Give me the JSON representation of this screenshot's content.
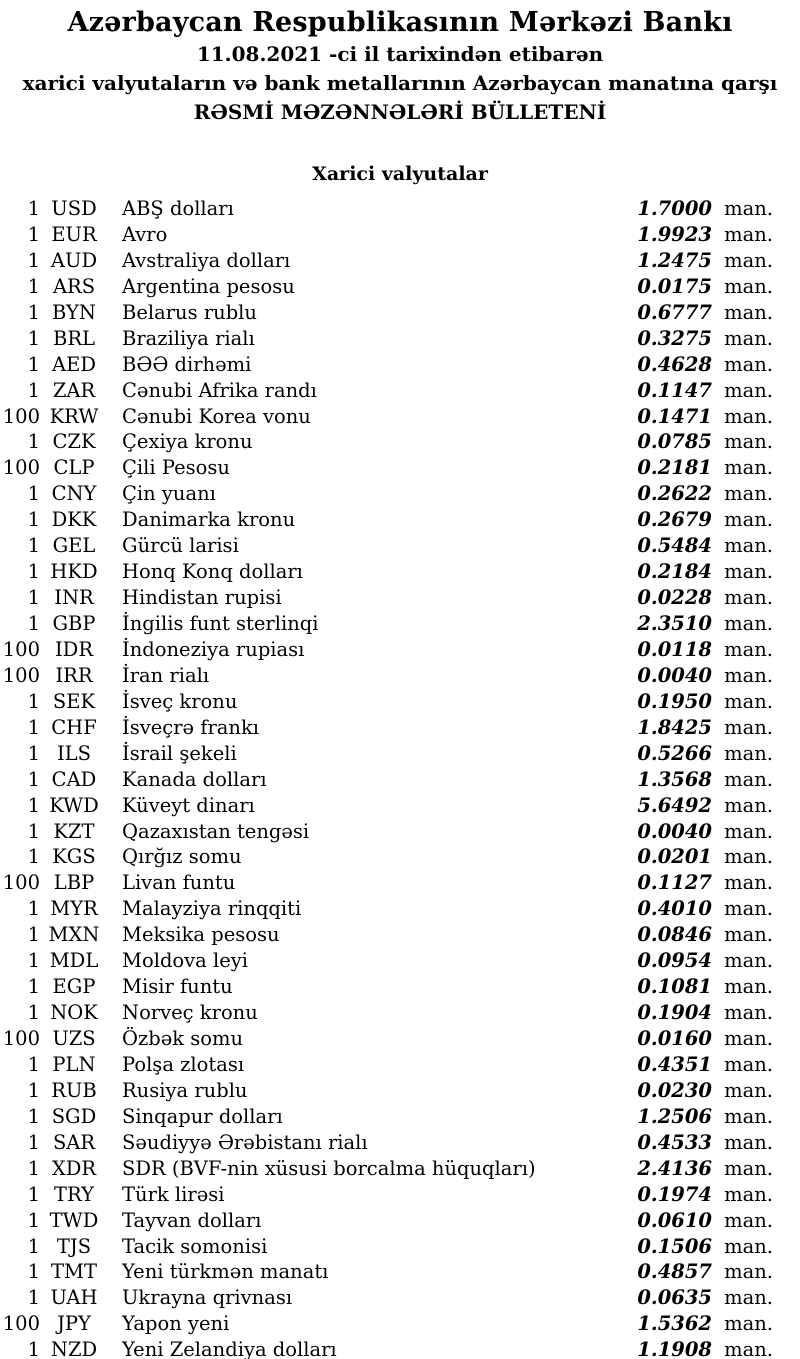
{
  "header": {
    "title": "Azərbaycan Respublikasının Mərkəzi Bankı",
    "date_line": "11.08.2021 -ci il tarixindən etibarən",
    "subject_line": "xarici valyutaların və bank metallarının Azərbaycan manatına qarşı",
    "bulletin_line": "RƏSMİ MƏZƏNNƏLƏRİ BÜLLETENİ"
  },
  "section": {
    "title": "Xarici valyutalar"
  },
  "unit_label": "man.",
  "rates": [
    {
      "qty": "1",
      "code": "USD",
      "name": "ABŞ dolları",
      "rate": "1.7000"
    },
    {
      "qty": "1",
      "code": "EUR",
      "name": "Avro",
      "rate": "1.9923"
    },
    {
      "qty": "1",
      "code": "AUD",
      "name": "Avstraliya dolları",
      "rate": "1.2475"
    },
    {
      "qty": "1",
      "code": "ARS",
      "name": "Argentina pesosu",
      "rate": "0.0175"
    },
    {
      "qty": "1",
      "code": "BYN",
      "name": "Belarus rublu",
      "rate": "0.6777"
    },
    {
      "qty": "1",
      "code": "BRL",
      "name": "Braziliya rialı",
      "rate": "0.3275"
    },
    {
      "qty": "1",
      "code": "AED",
      "name": "BƏƏ dirhəmi",
      "rate": "0.4628"
    },
    {
      "qty": "1",
      "code": "ZAR",
      "name": "Cənubi Afrika randı",
      "rate": "0.1147"
    },
    {
      "qty": "100",
      "code": "KRW",
      "name": "Cənubi Korea vonu",
      "rate": "0.1471"
    },
    {
      "qty": "1",
      "code": "CZK",
      "name": "Çexiya kronu",
      "rate": "0.0785"
    },
    {
      "qty": "100",
      "code": "CLP",
      "name": "Çili Pesosu",
      "rate": "0.2181"
    },
    {
      "qty": "1",
      "code": "CNY",
      "name": "Çin yuanı",
      "rate": "0.2622"
    },
    {
      "qty": "1",
      "code": "DKK",
      "name": "Danimarka kronu",
      "rate": "0.2679"
    },
    {
      "qty": "1",
      "code": "GEL",
      "name": "Gürcü larisi",
      "rate": "0.5484"
    },
    {
      "qty": "1",
      "code": "HKD",
      "name": "Honq Konq dolları",
      "rate": "0.2184"
    },
    {
      "qty": "1",
      "code": "INR",
      "name": "Hindistan rupisi",
      "rate": "0.0228"
    },
    {
      "qty": "1",
      "code": "GBP",
      "name": "İngilis funt sterlinqi",
      "rate": "2.3510"
    },
    {
      "qty": "100",
      "code": "IDR",
      "name": "İndoneziya rupiası",
      "rate": "0.0118"
    },
    {
      "qty": "100",
      "code": "IRR",
      "name": "İran rialı",
      "rate": "0.0040"
    },
    {
      "qty": "1",
      "code": "SEK",
      "name": "İsveç kronu",
      "rate": "0.1950"
    },
    {
      "qty": "1",
      "code": "CHF",
      "name": "İsveçrə frankı",
      "rate": "1.8425"
    },
    {
      "qty": "1",
      "code": "ILS",
      "name": "İsrail şekeli",
      "rate": "0.5266"
    },
    {
      "qty": "1",
      "code": "CAD",
      "name": "Kanada dolları",
      "rate": "1.3568"
    },
    {
      "qty": "1",
      "code": "KWD",
      "name": "Küveyt dinarı",
      "rate": "5.6492"
    },
    {
      "qty": "1",
      "code": "KZT",
      "name": "Qazaxıstan tengəsi",
      "rate": "0.0040"
    },
    {
      "qty": "1",
      "code": "KGS",
      "name": "Qırğız somu",
      "rate": "0.0201"
    },
    {
      "qty": "100",
      "code": "LBP",
      "name": "Livan funtu",
      "rate": "0.1127"
    },
    {
      "qty": "1",
      "code": "MYR",
      "name": "Malayziya rinqqiti",
      "rate": "0.4010"
    },
    {
      "qty": "1",
      "code": "MXN",
      "name": "Meksika pesosu",
      "rate": "0.0846"
    },
    {
      "qty": "1",
      "code": "MDL",
      "name": "Moldova leyi",
      "rate": "0.0954"
    },
    {
      "qty": "1",
      "code": "EGP",
      "name": "Misir funtu",
      "rate": "0.1081"
    },
    {
      "qty": "1",
      "code": "NOK",
      "name": "Norveç kronu",
      "rate": "0.1904"
    },
    {
      "qty": "100",
      "code": "UZS",
      "name": "Özbək somu",
      "rate": "0.0160"
    },
    {
      "qty": "1",
      "code": "PLN",
      "name": "Polşa zlotası",
      "rate": "0.4351"
    },
    {
      "qty": "1",
      "code": "RUB",
      "name": "Rusiya rublu",
      "rate": "0.0230"
    },
    {
      "qty": "1",
      "code": "SGD",
      "name": "Sinqapur dolları",
      "rate": "1.2506"
    },
    {
      "qty": "1",
      "code": "SAR",
      "name": "Səudiyyə Ərəbistanı rialı",
      "rate": "0.4533"
    },
    {
      "qty": "1",
      "code": "XDR",
      "name": "SDR (BVF-nin xüsusi borcalma hüquqları)",
      "rate": "2.4136"
    },
    {
      "qty": "1",
      "code": "TRY",
      "name": "Türk lirəsi",
      "rate": "0.1974"
    },
    {
      "qty": "1",
      "code": "TWD",
      "name": "Tayvan dolları",
      "rate": "0.0610"
    },
    {
      "qty": "1",
      "code": "TJS",
      "name": "Tacik somonisi",
      "rate": "0.1506"
    },
    {
      "qty": "1",
      "code": "TMT",
      "name": "Yeni türkmən manatı",
      "rate": "0.4857"
    },
    {
      "qty": "1",
      "code": "UAH",
      "name": "Ukrayna qrivnası",
      "rate": "0.0635"
    },
    {
      "qty": "100",
      "code": "JPY",
      "name": "Yapon yeni",
      "rate": "1.5362"
    },
    {
      "qty": "1",
      "code": "NZD",
      "name": "Yeni Zelandiya dolları",
      "rate": "1.1908"
    }
  ]
}
